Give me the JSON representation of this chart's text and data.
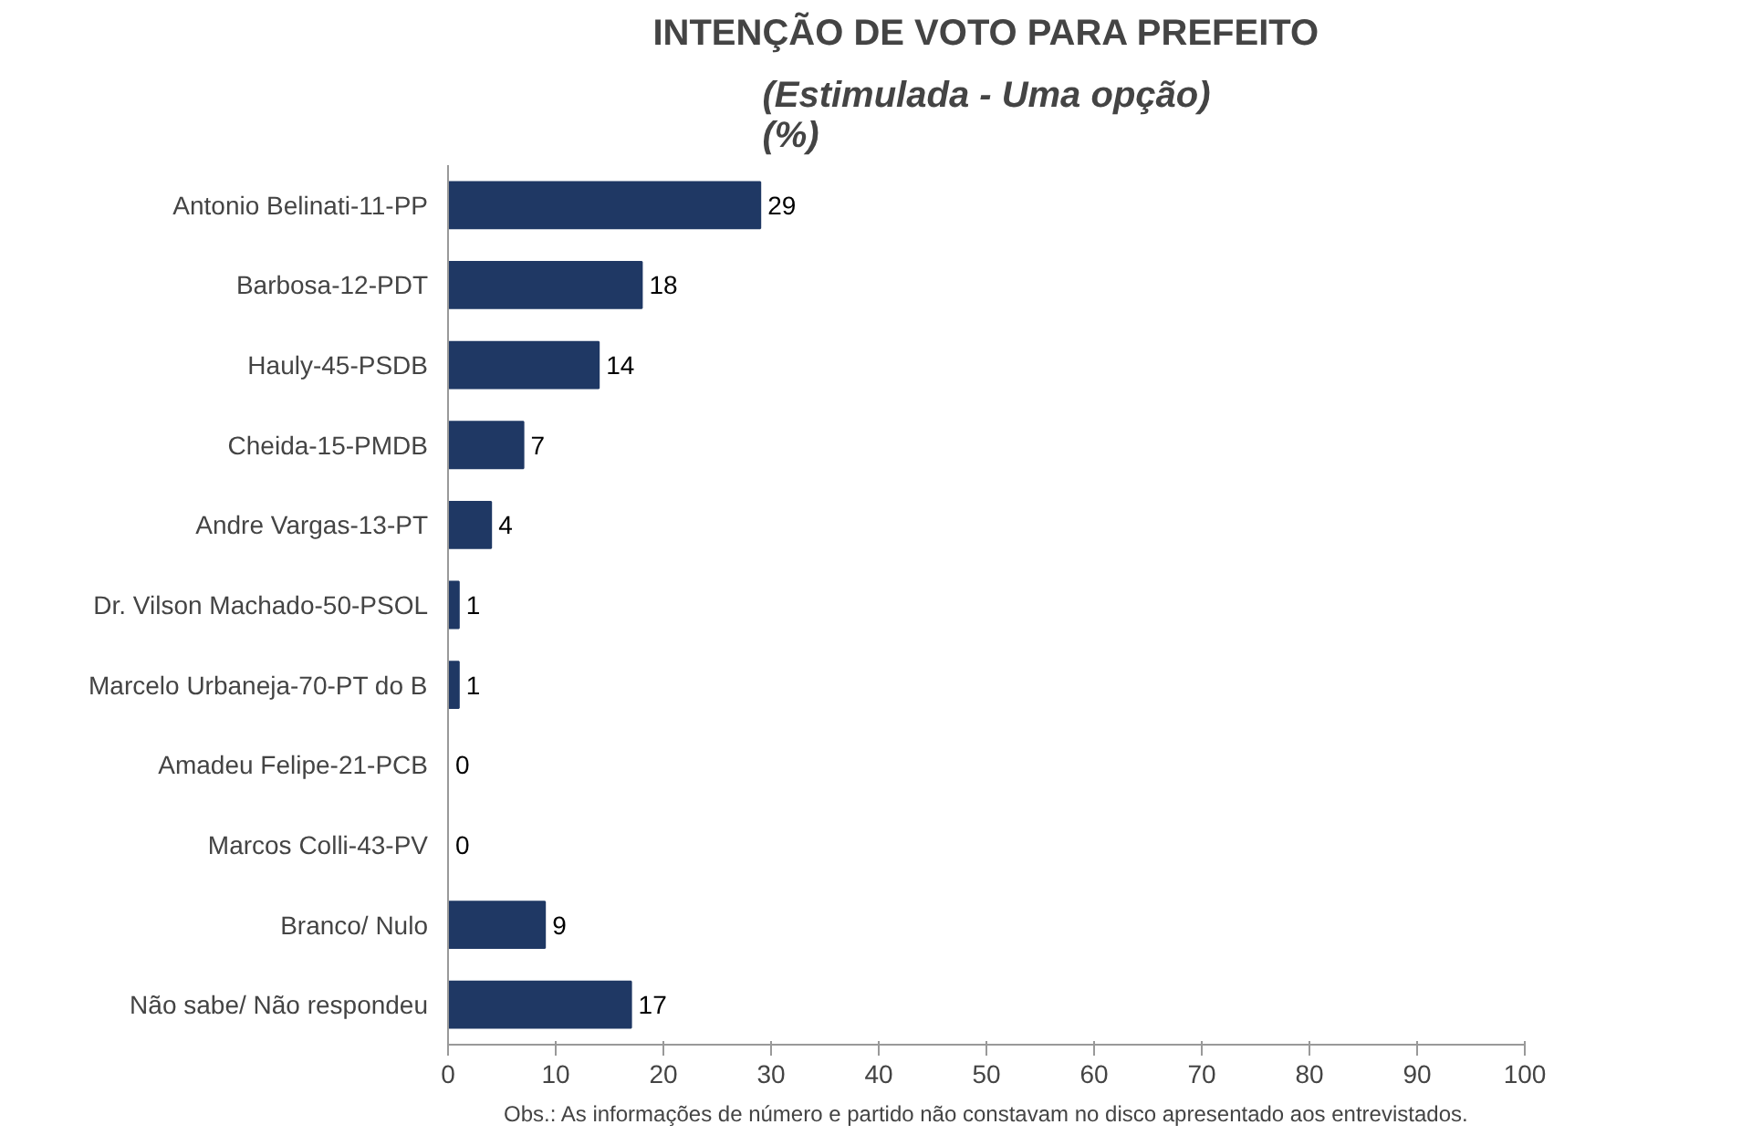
{
  "chart_data": {
    "type": "bar",
    "orientation": "horizontal",
    "title": "INTENÇÃO DE VOTO PARA PREFEITO",
    "subtitle": "(Estimulada - Uma opção)\n(%)",
    "categories": [
      "Antonio Belinati-11-PP",
      "Barbosa-12-PDT",
      "Hauly-45-PSDB",
      "Cheida-15-PMDB",
      "Andre Vargas-13-PT",
      "Dr. Vilson Machado-50-PSOL",
      "Marcelo Urbaneja-70-PT do B",
      "Amadeu Felipe-21-PCB",
      "Marcos Colli-43-PV",
      "Branco/ Nulo",
      "Não sabe/ Não respondeu"
    ],
    "values": [
      29,
      18,
      14,
      7,
      4,
      1,
      1,
      0,
      0,
      9,
      17
    ],
    "color": "#1f3864",
    "xlim": [
      0,
      100
    ],
    "xticks": [
      0,
      10,
      20,
      30,
      40,
      50,
      60,
      70,
      80,
      90,
      100
    ],
    "grid": false,
    "data_labels": true,
    "annotations": [
      "Obs.: As informações de número e partido não constavam no disco apresentado aos entrevistados."
    ]
  }
}
